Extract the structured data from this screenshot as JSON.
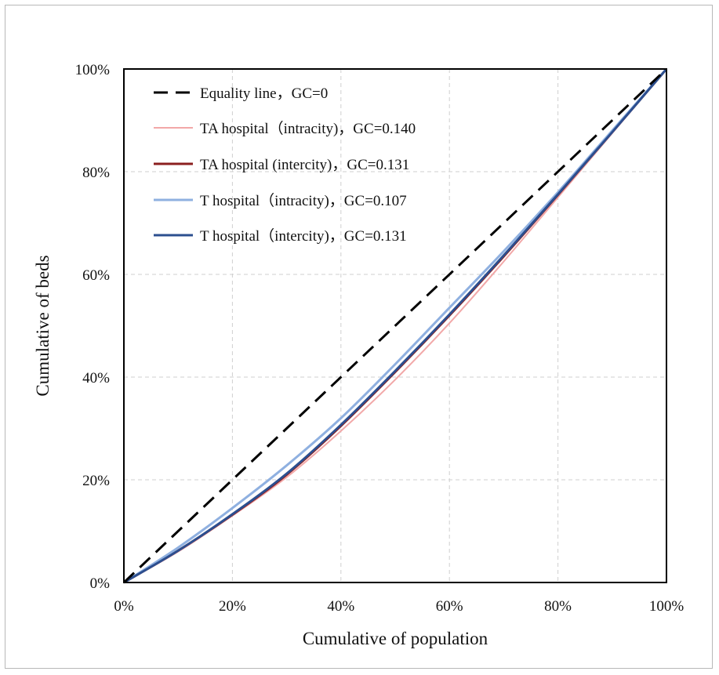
{
  "chart_data": {
    "type": "line",
    "xlabel": "Cumulative of population",
    "ylabel": "Cumulative of beds",
    "xlim": [
      0,
      100
    ],
    "ylim": [
      0,
      100
    ],
    "x_ticks": [
      "0%",
      "20%",
      "40%",
      "60%",
      "80%",
      "100%"
    ],
    "y_ticks": [
      "0%",
      "20%",
      "40%",
      "60%",
      "80%",
      "100%"
    ],
    "grid": true,
    "legend_position": "top-left",
    "series": [
      {
        "name": "Equality line，GC=0",
        "color": "#000000",
        "dash": "dashed",
        "x": [
          0,
          100
        ],
        "y": [
          0,
          100
        ]
      },
      {
        "name": "TA hospital（intracity)，GC=0.140",
        "color": "#f2a8a8",
        "dash": "solid",
        "x": [
          0,
          10,
          20,
          30,
          40,
          50,
          60,
          70,
          80,
          90,
          100
        ],
        "y": [
          0,
          6,
          13,
          20.5,
          29.5,
          39.5,
          50.5,
          62.5,
          75,
          87.5,
          100
        ]
      },
      {
        "name": "TA hospital (intercity)，GC=0.131",
        "color": "#8b1f1f",
        "dash": "solid",
        "x": [
          0,
          10,
          20,
          30,
          40,
          50,
          60,
          70,
          80,
          90,
          100
        ],
        "y": [
          0,
          6.2,
          13.2,
          21,
          30.5,
          41,
          52,
          63.5,
          75.5,
          87.7,
          100
        ]
      },
      {
        "name": "T hospital（intracity)，GC=0.107",
        "color": "#8fb0e0",
        "dash": "solid",
        "x": [
          0,
          10,
          20,
          30,
          40,
          50,
          60,
          70,
          80,
          90,
          100
        ],
        "y": [
          0,
          6.8,
          14.5,
          22.8,
          32,
          42.5,
          53.5,
          64.5,
          76,
          88,
          100
        ]
      },
      {
        "name": "T hospital（intercity)，GC=0.131",
        "color": "#2c4f8f",
        "dash": "solid",
        "x": [
          0,
          10,
          20,
          30,
          40,
          50,
          60,
          70,
          80,
          90,
          100
        ],
        "y": [
          0,
          6.2,
          13.3,
          21.2,
          30.7,
          41.2,
          52.2,
          63.7,
          75.6,
          87.7,
          100
        ]
      }
    ]
  }
}
